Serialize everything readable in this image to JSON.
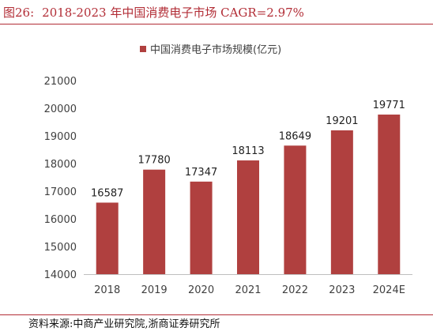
{
  "figure": {
    "label": "图26:",
    "title": "2018-2023 年中国消费电子市场 CAGR=2.97%",
    "source": "资料来源:中商产业研究院,浙商证券研究所"
  },
  "colors": {
    "accent": "#b22d36",
    "bar": "#b0403f",
    "axis": "#bfbfbf",
    "text": "#404040"
  },
  "chart_data": {
    "type": "bar",
    "categories": [
      "2018",
      "2019",
      "2020",
      "2021",
      "2022",
      "2023",
      "2024E"
    ],
    "series": [
      {
        "name": "中国消费电子市场规模(亿元)",
        "values": [
          16587,
          17780,
          17347,
          18113,
          18649,
          19201,
          19771
        ]
      }
    ],
    "ylim": [
      14000,
      21000
    ],
    "yticks": [
      14000,
      15000,
      16000,
      17000,
      18000,
      19000,
      20000,
      21000
    ],
    "data_labels": true,
    "grid": false,
    "legend": "top"
  }
}
